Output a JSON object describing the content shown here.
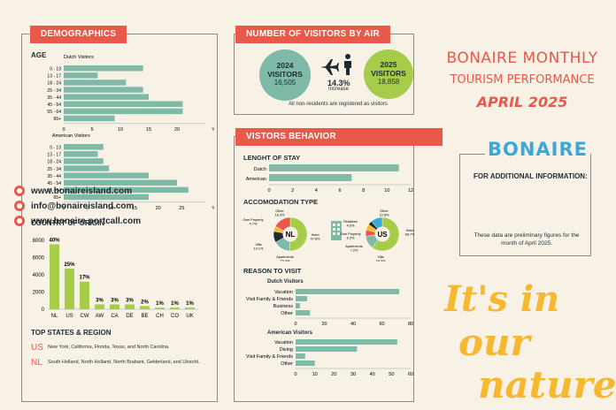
{
  "header": {
    "title_line1": "BONAIRE MONTHLY",
    "title_line2": "TOURISM PERFORMANCE",
    "subtitle": "APRIL 2025"
  },
  "logo_text": "BONAIRE",
  "info": {
    "heading": "FOR ADDITIONAL INFORMATION:",
    "links": [
      "www.bonaireisland.com",
      "info@bonaireisland.com",
      "www.bonaire.portcall.com"
    ],
    "note": "These data are preliminary figures for the month of April 2025."
  },
  "slogan": "It's in our nature.",
  "colors": {
    "accent": "#e8594a",
    "teal": "#7fb9a8",
    "green": "#a7cc4a",
    "navy": "#1f2a30"
  },
  "demographics": {
    "title": "DEMOGRAPHICS",
    "age_label": "AGE"
  },
  "origin": {
    "title": "COUNTRY OF ORIGIN"
  },
  "top_states": {
    "title": "TOP STATES & REGION",
    "rows": [
      {
        "code": "US",
        "text": "New York, California, Florida, Texas, and North Carolina."
      },
      {
        "code": "NL",
        "text": "South Holland, North Holland, North Brabant, Gelderland, and Utrecht."
      }
    ]
  },
  "air": {
    "title": "NUMBER OF VISITORS BY AIR",
    "y2024": {
      "year": "2024",
      "label": "VISITORS",
      "value": "16,505"
    },
    "y2025": {
      "year": "2025",
      "label": "VISITORS",
      "value": "18,858"
    },
    "increase_pct": "14.3%",
    "increase_label": "Increase",
    "note": "All non-residents are registered as visitors"
  },
  "behavior": {
    "title": "VISTORS BEHAVIOR",
    "stay_title": "LENGHT OF STAY",
    "accom_title": "ACCOMODATION TYPE",
    "reason_title": "REASON TO VISIT"
  },
  "chart_data": [
    {
      "type": "bar",
      "title": "Dutch Visitors",
      "orientation": "horizontal",
      "categories": [
        "0 - 13",
        "13 - 17",
        "18 - 24",
        "25 - 34",
        "35 - 44",
        "45 - 54",
        "55 - 64",
        "65+"
      ],
      "values": [
        14,
        6,
        11,
        14,
        15,
        21,
        21,
        9
      ],
      "xlim": [
        0,
        25
      ],
      "xticks": [
        "0",
        "5",
        "10",
        "15",
        "20",
        "%"
      ]
    },
    {
      "type": "bar",
      "title": "American Visitors",
      "orientation": "horizontal",
      "categories": [
        "0 - 13",
        "13 - 17",
        "18 - 24",
        "25 - 34",
        "35 - 44",
        "45 - 54",
        "55 - 64",
        "65+"
      ],
      "values": [
        7,
        6,
        7,
        8,
        15,
        20,
        22,
        15
      ],
      "xlim": [
        0,
        25
      ],
      "xticks": [
        "0",
        "5",
        "10",
        "15",
        "20",
        "25",
        "%"
      ]
    },
    {
      "type": "bar",
      "title": "COUNTRY OF ORIGIN",
      "categories": [
        "NL",
        "US",
        "CW",
        "AW",
        "CA",
        "DE",
        "BE",
        "CH",
        "CO",
        "UK"
      ],
      "values": [
        7543,
        4715,
        3206,
        566,
        566,
        566,
        377,
        189,
        189,
        189
      ],
      "labels": [
        "40%",
        "25%",
        "17%",
        "3%",
        "3%",
        "3%",
        "2%",
        "1%",
        "1%",
        "1%"
      ],
      "ylim": [
        0,
        8000
      ],
      "yticks": [
        "0",
        "2000",
        "4000",
        "6000",
        "8000"
      ]
    },
    {
      "type": "bar",
      "title": "LENGHT OF STAY",
      "orientation": "horizontal",
      "categories": [
        "Dutch",
        "American"
      ],
      "values": [
        11,
        7
      ],
      "xlim": [
        0,
        12
      ],
      "xticks": [
        "0",
        "2",
        "4",
        "6",
        "8",
        "10",
        "12"
      ]
    },
    {
      "type": "pie",
      "title": "NL",
      "labels": [
        "Hotel",
        "Apartments",
        "Villa",
        "Own Property",
        "Other"
      ],
      "values": [
        47.8,
        15.3,
        10.1,
        4.7,
        16.3
      ],
      "value_labels": [
        "47.8%",
        "15.3%",
        "10.1%",
        "4.7%",
        "16.3%"
      ]
    },
    {
      "type": "pie",
      "title": "US",
      "labels": [
        "Hotel",
        "Villa",
        "Apartments",
        "Own Property",
        "Relatives",
        "Other"
      ],
      "values": [
        68.7,
        14.3,
        7.2,
        6.3,
        4.5,
        12.8
      ],
      "value_labels": [
        "68.7%",
        "14.3%",
        "7.2%",
        "6.3%",
        "4.5%",
        "12.8%"
      ]
    },
    {
      "type": "bar",
      "title": "Dutch Visitors",
      "orientation": "horizontal",
      "categories": [
        "Vacation",
        "Visit Family & Friends",
        "Business",
        "Other"
      ],
      "values": [
        72,
        8,
        3,
        10
      ],
      "xlim": [
        0,
        80
      ],
      "xticks": [
        "0",
        "20",
        "40",
        "60",
        "80"
      ]
    },
    {
      "type": "bar",
      "title": "American Visitors",
      "orientation": "horizontal",
      "categories": [
        "Vacation",
        "Diving",
        "Visit Family & Friends",
        "Other"
      ],
      "values": [
        53,
        32,
        5,
        10
      ],
      "xlim": [
        0,
        60
      ],
      "xticks": [
        "0",
        "10",
        "20",
        "30",
        "40",
        "50",
        "60"
      ]
    }
  ]
}
